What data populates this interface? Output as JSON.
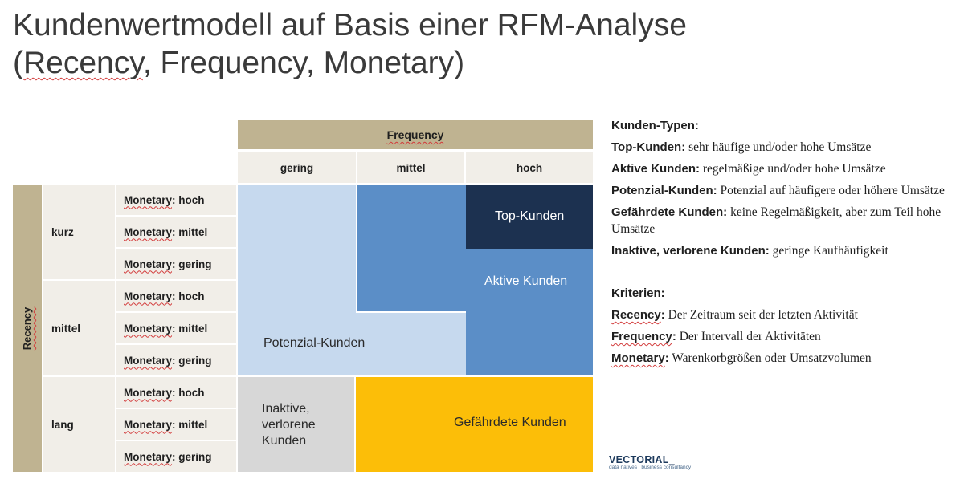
{
  "title": {
    "line1": "Kundenwertmodell auf Basis einer RFM-Analyse",
    "line2_open": "(",
    "recency": "Recency",
    "comma1": ", ",
    "frequency": "Frequency",
    "comma2": ", ",
    "monetary": "Monetary",
    "line2_close": ")"
  },
  "matrix": {
    "frequency_header": "Frequency",
    "frequency_levels": [
      "gering",
      "mittel",
      "hoch"
    ],
    "recency_header": "Recency",
    "recency_levels": [
      "kurz",
      "mittel",
      "lang"
    ],
    "monetary_prefix": "Monetary",
    "monetary_levels": [
      "hoch",
      "mittel",
      "gering"
    ]
  },
  "segments": {
    "potenzial": "Potenzial-Kunden",
    "aktiv": "Aktive Kunden",
    "top": "Top-Kunden",
    "inaktiv_l1": "Inaktive,",
    "inaktiv_l2": "verlorene",
    "inaktiv_l3": "Kunden",
    "gefaehrdet": "Gefährdete Kunden"
  },
  "colors": {
    "potenzial": "#c6d9ee",
    "aktiv": "#5b8ec7",
    "top": "#1c3150",
    "gefaehrdet": "#fcbe08",
    "inaktiv": "#d7d7d7",
    "header_tan": "#bfb391",
    "header_light": "#f1eee8"
  },
  "legend": {
    "types_heading": "Kunden-Typen:",
    "types": [
      {
        "term": "Top-Kunden:",
        "desc": " sehr häufige und/oder hohe Umsätze"
      },
      {
        "term": "Aktive Kunden:",
        "desc": " regelmäßige und/oder hohe Umsätze"
      },
      {
        "term": "Potenzial-Kunden:",
        "desc": " Potenzial auf häufigere oder höhere Umsätze"
      },
      {
        "term": "Gefährdete Kunden:",
        "desc": " keine Regelmäßigkeit, aber zum Teil hohe Umsätze"
      },
      {
        "term": "Inaktive, verlorene Kunden:",
        "desc": " geringe Kaufhäufigkeit"
      }
    ],
    "criteria_heading": "Kriterien:",
    "criteria": [
      {
        "term": "Recency",
        "colon": ":",
        "desc": " Der Zeitraum seit der letzten Aktivität"
      },
      {
        "term": "Frequency",
        "colon": ":",
        "desc": " Der Intervall der Aktivitäten"
      },
      {
        "term": "Monetary",
        "colon": ":",
        "desc": " Warenkorbgrößen oder Umsatzvolumen"
      }
    ]
  },
  "logo": {
    "name": "VECTORIAL_",
    "tagline": "data natives | business consultancy"
  }
}
